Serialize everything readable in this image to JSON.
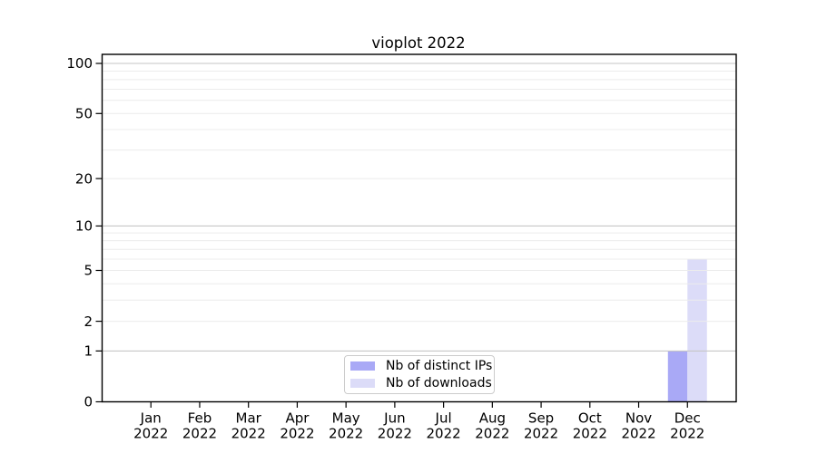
{
  "title": "vioplot 2022",
  "legend": {
    "items": [
      {
        "label": "Nb of distinct IPs",
        "color": "#a9a9f6"
      },
      {
        "label": "Nb of downloads",
        "color": "#dcdcf8"
      }
    ]
  },
  "colors": {
    "background": "#ffffff",
    "axis": "#000000",
    "grid_minor": "#ececec",
    "grid_major": "#c6c6c6",
    "legend_border": "#cccccc",
    "text": "#000000"
  },
  "chart_data": {
    "type": "bar",
    "title": "vioplot 2022",
    "categories": [
      "Jan 2022",
      "Feb 2022",
      "Mar 2022",
      "Apr 2022",
      "May 2022",
      "Jun 2022",
      "Jul 2022",
      "Aug 2022",
      "Sep 2022",
      "Oct 2022",
      "Nov 2022",
      "Dec 2022"
    ],
    "months": [
      "Jan",
      "Feb",
      "Mar",
      "Apr",
      "May",
      "Jun",
      "Jul",
      "Aug",
      "Sep",
      "Oct",
      "Nov",
      "Dec"
    ],
    "year": "2022",
    "series": [
      {
        "name": "Nb of distinct IPs",
        "color": "#a9a9f6",
        "values": [
          0,
          0,
          0,
          0,
          0,
          0,
          0,
          0,
          0,
          0,
          0,
          1
        ]
      },
      {
        "name": "Nb of downloads",
        "color": "#dcdcf8",
        "values": [
          0,
          0,
          0,
          0,
          0,
          0,
          0,
          0,
          0,
          0,
          0,
          6
        ]
      }
    ],
    "y_scale": "log1p",
    "ylim": [
      0,
      113
    ],
    "y_ticks": [
      0,
      1,
      2,
      5,
      10,
      20,
      50,
      100
    ],
    "grid_minor": [
      2,
      3,
      4,
      5,
      6,
      7,
      8,
      9,
      20,
      30,
      40,
      50,
      60,
      70,
      80,
      90
    ],
    "grid_major": [
      1,
      10,
      100
    ],
    "grid": true,
    "legend_position": "bottom-center"
  }
}
